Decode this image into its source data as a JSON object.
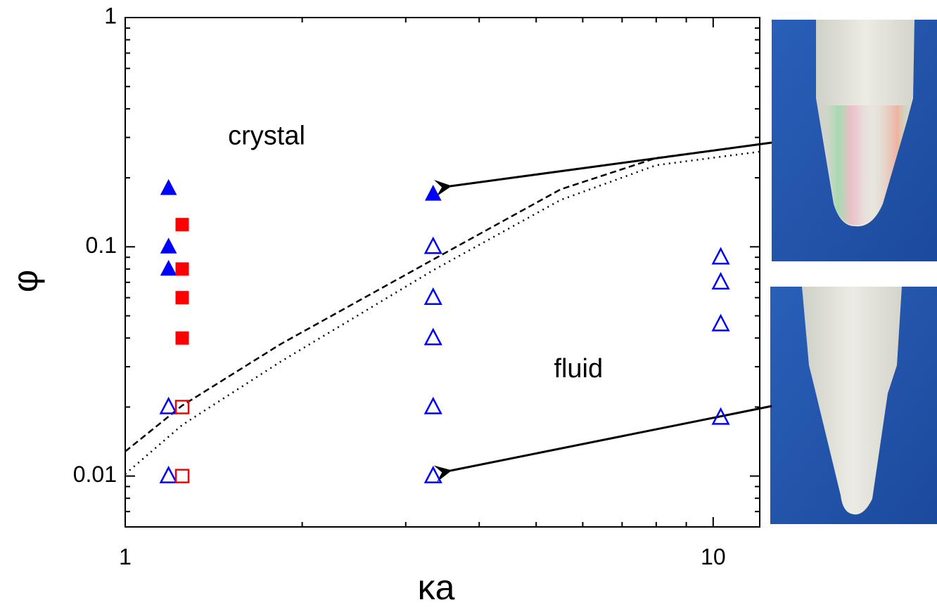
{
  "chart_data": {
    "type": "scatter",
    "xlabel": "κa",
    "ylabel": "φ",
    "xlog": true,
    "ylog": true,
    "xlim": [
      1,
      12
    ],
    "ylim": [
      0.006,
      1
    ],
    "xticks": [
      1,
      10
    ],
    "yticks": [
      0.01,
      0.1,
      1
    ],
    "xminor": [
      2,
      3,
      4,
      5,
      6,
      7,
      8,
      9
    ],
    "yminor": [
      0.007,
      0.008,
      0.009,
      0.02,
      0.03,
      0.04,
      0.05,
      0.06,
      0.07,
      0.08,
      0.09,
      0.2,
      0.3,
      0.4,
      0.5,
      0.6,
      0.7,
      0.8,
      0.9
    ],
    "annotations": [
      {
        "text": "crystal",
        "x": 1.74,
        "y": 0.3
      },
      {
        "text": "fluid",
        "x": 5.9,
        "y": 0.029
      }
    ],
    "series": [
      {
        "color": "#0000ff",
        "marker": "triangle",
        "filled": true,
        "x": [
          1.185,
          1.185,
          1.185,
          3.34
        ],
        "values": [
          0.18,
          0.1,
          0.08,
          0.17
        ]
      },
      {
        "color": "#ff0000",
        "marker": "square",
        "filled": true,
        "x": [
          1.25,
          1.25,
          1.25,
          1.25
        ],
        "values": [
          0.125,
          0.08,
          0.06,
          0.04
        ]
      },
      {
        "color": "#0000ff",
        "marker": "triangle",
        "filled": false,
        "x": [
          1.185,
          1.185,
          3.34,
          3.34,
          3.34,
          3.34,
          3.34,
          10.3,
          10.3,
          10.3,
          10.3
        ],
        "values": [
          0.02,
          0.01,
          0.1,
          0.06,
          0.04,
          0.02,
          0.01,
          0.09,
          0.07,
          0.046,
          0.018
        ]
      },
      {
        "color": "#ff0000",
        "marker": "square",
        "filled": false,
        "x": [
          1.25,
          1.25
        ],
        "values": [
          0.02,
          0.01
        ]
      }
    ],
    "curves": [
      {
        "color": "#000000",
        "dash": "dashed",
        "x": [
          1,
          1.25,
          1.84,
          3.34,
          5.5,
          8,
          12
        ],
        "values": [
          0.0128,
          0.0203,
          0.0377,
          0.088,
          0.178,
          0.244,
          0.28
        ]
      },
      {
        "color": "#000000",
        "dash": "dotted",
        "x": [
          1,
          1.25,
          1.84,
          3.34,
          5.5,
          8,
          12
        ],
        "values": [
          0.0102,
          0.0167,
          0.0316,
          0.079,
          0.16,
          0.227,
          0.26
        ]
      }
    ]
  }
}
